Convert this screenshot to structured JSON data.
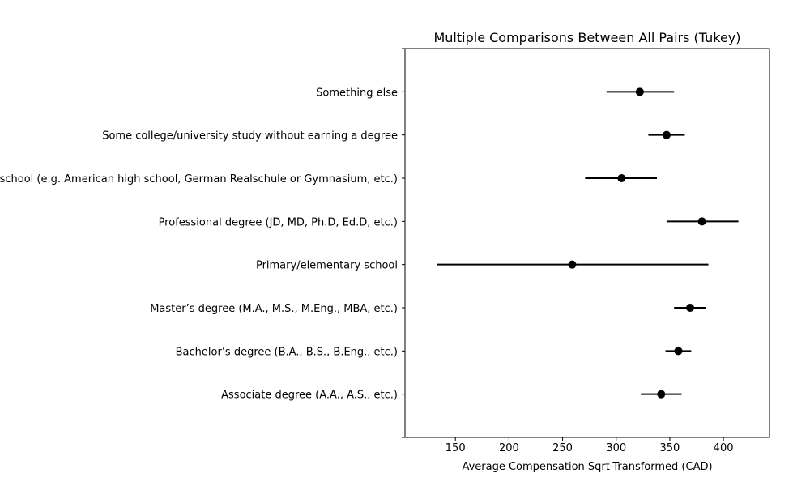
{
  "chart_data": {
    "type": "errorbar",
    "title": "Multiple Comparisons Between All Pairs (Tukey)",
    "xlabel": "Average Compensation Sqrt-Transformed (CAD)",
    "ylabel": "",
    "xlim": [
      103,
      443
    ],
    "xticks": [
      150,
      200,
      250,
      300,
      350,
      400
    ],
    "grid": false,
    "groups": [
      {
        "label": "Associate degree (A.A., A.S., etc.)",
        "mean": 342,
        "low": 323,
        "high": 361
      },
      {
        "label": "Bachelor’s degree (B.A., B.S., B.Eng., etc.)",
        "mean": 358,
        "low": 346,
        "high": 370
      },
      {
        "label": "Master’s degree (M.A., M.S., M.Eng., MBA, etc.)",
        "mean": 369,
        "low": 354,
        "high": 384
      },
      {
        "label": "Primary/elementary school",
        "mean": 259,
        "low": 133,
        "high": 386
      },
      {
        "label": "Professional degree (JD, MD, Ph.D, Ed.D, etc.)",
        "mean": 380,
        "low": 347,
        "high": 414
      },
      {
        "label": "Secondary school (e.g. American high school, German Realschule or Gymnasium, etc.)",
        "mean": 305,
        "low": 271,
        "high": 338
      },
      {
        "label": "Some college/university study without earning a degree",
        "mean": 347,
        "low": 330,
        "high": 364
      },
      {
        "label": "Something else",
        "mean": 322,
        "low": 291,
        "high": 354
      }
    ]
  }
}
